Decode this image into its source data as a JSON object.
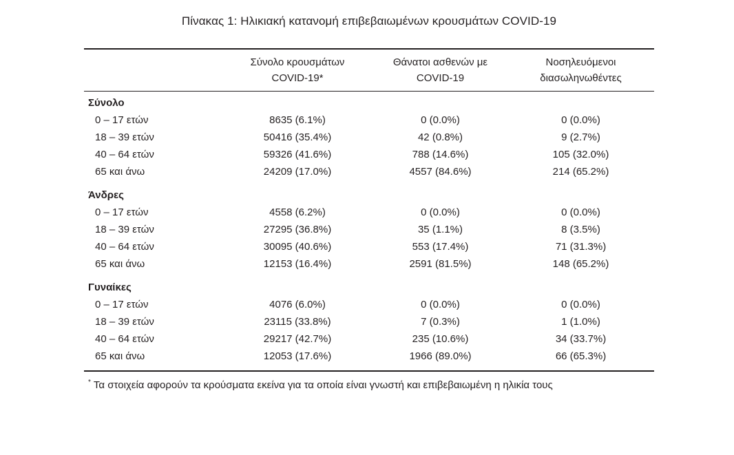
{
  "title": "Πίνακας 1: Ηλικιακή κατανομή επιβεβαιωμένων κρουσμάτων COVID-19",
  "colors": {
    "text": "#231f20",
    "rule": "#231f20",
    "background": "#ffffff"
  },
  "table": {
    "columns": [
      {
        "line1": "",
        "line2": ""
      },
      {
        "line1": "Σύνολο κρουσμάτων",
        "line2": "COVID-19*"
      },
      {
        "line1": "Θάνατοι ασθενών με",
        "line2": "COVID-19"
      },
      {
        "line1": "Νοσηλευόμενοι",
        "line2": "διασωληνωθέντες"
      }
    ],
    "groups": [
      {
        "label": "Σύνολο",
        "rows": [
          {
            "age": "0 – 17 ετών",
            "values": [
              "8635 (6.1%)",
              "0 (0.0%)",
              "0 (0.0%)"
            ]
          },
          {
            "age": "18 – 39 ετών",
            "values": [
              "50416 (35.4%)",
              "42 (0.8%)",
              "9 (2.7%)"
            ]
          },
          {
            "age": "40 – 64 ετών",
            "values": [
              "59326 (41.6%)",
              "788 (14.6%)",
              "105 (32.0%)"
            ]
          },
          {
            "age": "65 και άνω",
            "values": [
              "24209 (17.0%)",
              "4557 (84.6%)",
              "214 (65.2%)"
            ]
          }
        ]
      },
      {
        "label": "Άνδρες",
        "rows": [
          {
            "age": "0 – 17 ετών",
            "values": [
              "4558 (6.2%)",
              "0 (0.0%)",
              "0 (0.0%)"
            ]
          },
          {
            "age": "18 – 39 ετών",
            "values": [
              "27295 (36.8%)",
              "35 (1.1%)",
              "8 (3.5%)"
            ]
          },
          {
            "age": "40 – 64 ετών",
            "values": [
              "30095 (40.6%)",
              "553 (17.4%)",
              "71 (31.3%)"
            ]
          },
          {
            "age": "65 και άνω",
            "values": [
              "12153 (16.4%)",
              "2591 (81.5%)",
              "148 (65.2%)"
            ]
          }
        ]
      },
      {
        "label": "Γυναίκες",
        "rows": [
          {
            "age": "0 – 17 ετών",
            "values": [
              "4076 (6.0%)",
              "0 (0.0%)",
              "0 (0.0%)"
            ]
          },
          {
            "age": "18 – 39 ετών",
            "values": [
              "23115 (33.8%)",
              "7 (0.3%)",
              "1 (1.0%)"
            ]
          },
          {
            "age": "40 – 64 ετών",
            "values": [
              "29217 (42.7%)",
              "235 (10.6%)",
              "34 (33.7%)"
            ]
          },
          {
            "age": "65 και άνω",
            "values": [
              "12053 (17.6%)",
              "1966 (89.0%)",
              "66 (65.3%)"
            ]
          }
        ]
      }
    ]
  },
  "footnote": {
    "marker": "*",
    "text": "Τα στοιχεία αφορούν τα κρούσματα εκείνα για τα οποία είναι γνωστή και επιβεβαιωμένη η ηλικία τους"
  }
}
